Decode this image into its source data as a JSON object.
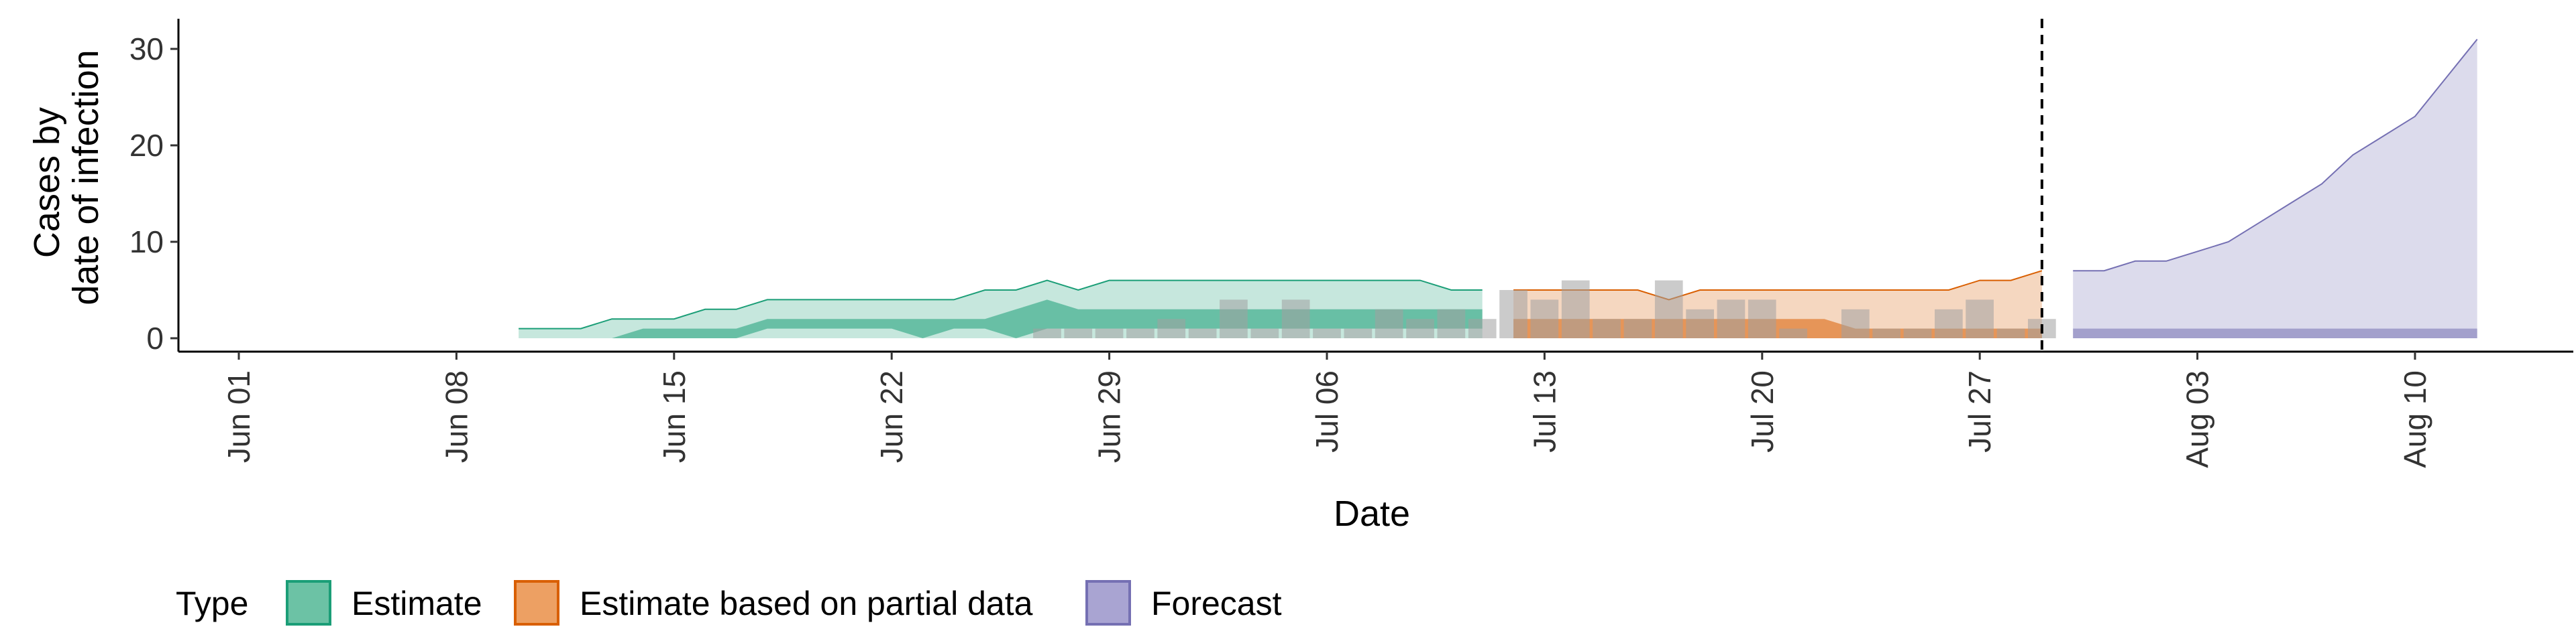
{
  "chart_data": {
    "type": "area",
    "xlabel": "Date",
    "ylabel_lines": [
      "Cases by",
      "date of infection"
    ],
    "x_ticks": [
      "2020-06-01",
      "2020-06-08",
      "2020-06-15",
      "2020-06-22",
      "2020-06-29",
      "2020-07-06",
      "2020-07-13",
      "2020-07-20",
      "2020-07-27",
      "2020-08-03",
      "2020-08-10"
    ],
    "x_tick_labels": [
      "Jun 01",
      "Jun 08",
      "Jun 15",
      "Jun 22",
      "Jun 29",
      "Jul 06",
      "Jul 13",
      "Jul 20",
      "Jul 27",
      "Aug 03",
      "Aug 10"
    ],
    "x_range": [
      "2019-05-29",
      "2020-08-17"
    ],
    "y_ticks": [
      0,
      10,
      20,
      30
    ],
    "y_range": [
      -1.3,
      32.5
    ],
    "grid": false,
    "vline_date": "2020-07-29",
    "legend": {
      "title": "Type",
      "position": "bottom",
      "items": [
        {
          "label": "Estimate",
          "fill": "#6cc2a5",
          "stroke": "#1b9e77"
        },
        {
          "label": "Estimate based on partial data",
          "fill": "#eda063",
          "stroke": "#d95f02"
        },
        {
          "label": "Forecast",
          "fill": "#a9a4d2",
          "stroke": "#7570b3"
        }
      ]
    },
    "colors": {
      "Estimate": "#1b9e77",
      "Estimate based on partial data": "#d95f02",
      "Forecast": "#7570b3",
      "bars": "#a0a0a0"
    },
    "series": [
      {
        "name": "Estimate",
        "x": [
          "2020-06-10",
          "2020-06-11",
          "2020-06-12",
          "2020-06-13",
          "2020-06-14",
          "2020-06-15",
          "2020-06-16",
          "2020-06-17",
          "2020-06-18",
          "2020-06-19",
          "2020-06-20",
          "2020-06-21",
          "2020-06-22",
          "2020-06-23",
          "2020-06-24",
          "2020-06-25",
          "2020-06-26",
          "2020-06-27",
          "2020-06-28",
          "2020-06-29",
          "2020-06-30",
          "2020-07-01",
          "2020-07-02",
          "2020-07-03",
          "2020-07-04",
          "2020-07-05",
          "2020-07-06",
          "2020-07-07",
          "2020-07-08",
          "2020-07-09",
          "2020-07-10",
          "2020-07-11"
        ],
        "upper90": [
          1,
          1,
          1,
          2,
          2,
          2,
          3,
          3,
          4,
          4,
          4,
          4,
          4,
          4,
          4,
          5,
          5,
          6,
          5,
          6,
          6,
          6,
          6,
          6,
          6,
          6,
          6,
          6,
          6,
          6,
          5,
          5
        ],
        "lower90": [
          0,
          0,
          0,
          0,
          0,
          0,
          0,
          0,
          0,
          0,
          0,
          0,
          0,
          0,
          0,
          0,
          0,
          0,
          0,
          0,
          0,
          0,
          0,
          0,
          0,
          0,
          0,
          0,
          0,
          0,
          0,
          0
        ],
        "upper50": [
          0,
          0,
          0,
          0,
          1,
          1,
          1,
          1,
          2,
          2,
          2,
          2,
          2,
          2,
          2,
          2,
          3,
          4,
          3,
          3,
          3,
          3,
          3,
          3,
          3,
          3,
          3,
          3,
          3,
          3,
          3,
          3
        ],
        "lower50": [
          0,
          0,
          0,
          0,
          0,
          0,
          0,
          0,
          1,
          1,
          1,
          1,
          1,
          0,
          1,
          1,
          0,
          1,
          1,
          1,
          1,
          1,
          1,
          1,
          1,
          1,
          1,
          1,
          1,
          1,
          1,
          1
        ]
      },
      {
        "name": "Estimate based on partial data",
        "x": [
          "2020-07-12",
          "2020-07-13",
          "2020-07-14",
          "2020-07-15",
          "2020-07-16",
          "2020-07-17",
          "2020-07-18",
          "2020-07-19",
          "2020-07-20",
          "2020-07-21",
          "2020-07-22",
          "2020-07-23",
          "2020-07-24",
          "2020-07-25",
          "2020-07-26",
          "2020-07-27",
          "2020-07-28",
          "2020-07-29"
        ],
        "upper90": [
          5,
          5,
          5,
          5,
          5,
          4,
          5,
          5,
          5,
          5,
          5,
          5,
          5,
          5,
          5,
          6,
          6,
          7
        ],
        "lower90": [
          0,
          0,
          0,
          0,
          0,
          0,
          0,
          0,
          0,
          0,
          0,
          0,
          0,
          0,
          0,
          0,
          0,
          0
        ],
        "upper50": [
          2,
          2,
          2,
          2,
          2,
          2,
          2,
          2,
          2,
          2,
          2,
          1,
          1,
          1,
          1,
          1,
          1,
          1
        ],
        "lower50": [
          0,
          0,
          0,
          0,
          0,
          0,
          0,
          0,
          0,
          0,
          0,
          0,
          0,
          0,
          0,
          0,
          0,
          0
        ]
      },
      {
        "name": "Forecast",
        "x": [
          "2020-07-30",
          "2020-07-31",
          "2020-08-01",
          "2020-08-02",
          "2020-08-03",
          "2020-08-04",
          "2020-08-05",
          "2020-08-06",
          "2020-08-07",
          "2020-08-08",
          "2020-08-09",
          "2020-08-10",
          "2020-08-11",
          "2020-08-12"
        ],
        "upper90": [
          7,
          7,
          8,
          8,
          9,
          10,
          12,
          14,
          16,
          19,
          21,
          23,
          27,
          31
        ],
        "lower90": [
          0,
          0,
          0,
          0,
          0,
          0,
          0,
          0,
          0,
          0,
          0,
          0,
          0,
          0
        ],
        "upper50": [
          1,
          1,
          1,
          1,
          1,
          1,
          1,
          1,
          1,
          1,
          1,
          1,
          1,
          1
        ],
        "lower50": [
          0,
          0,
          0,
          0,
          0,
          0,
          0,
          0,
          0,
          0,
          0,
          0,
          0,
          0
        ]
      }
    ],
    "reported_cases": {
      "x": [
        "2020-06-27",
        "2020-06-28",
        "2020-06-29",
        "2020-06-30",
        "2020-07-01",
        "2020-07-02",
        "2020-07-03",
        "2020-07-04",
        "2020-07-05",
        "2020-07-06",
        "2020-07-07",
        "2020-07-08",
        "2020-07-09",
        "2020-07-10",
        "2020-07-11",
        "2020-07-12",
        "2020-07-13",
        "2020-07-14",
        "2020-07-15",
        "2020-07-16",
        "2020-07-17",
        "2020-07-18",
        "2020-07-19",
        "2020-07-20",
        "2020-07-21",
        "2020-07-22",
        "2020-07-23",
        "2020-07-24",
        "2020-07-25",
        "2020-07-26",
        "2020-07-27",
        "2020-07-28",
        "2020-07-29"
      ],
      "values": [
        1,
        1,
        1,
        1,
        2,
        1,
        4,
        1,
        4,
        1,
        1,
        3,
        2,
        3,
        2,
        5,
        4,
        6,
        2,
        2,
        6,
        3,
        4,
        4,
        1,
        0,
        3,
        1,
        1,
        3,
        4,
        1,
        2
      ]
    }
  }
}
